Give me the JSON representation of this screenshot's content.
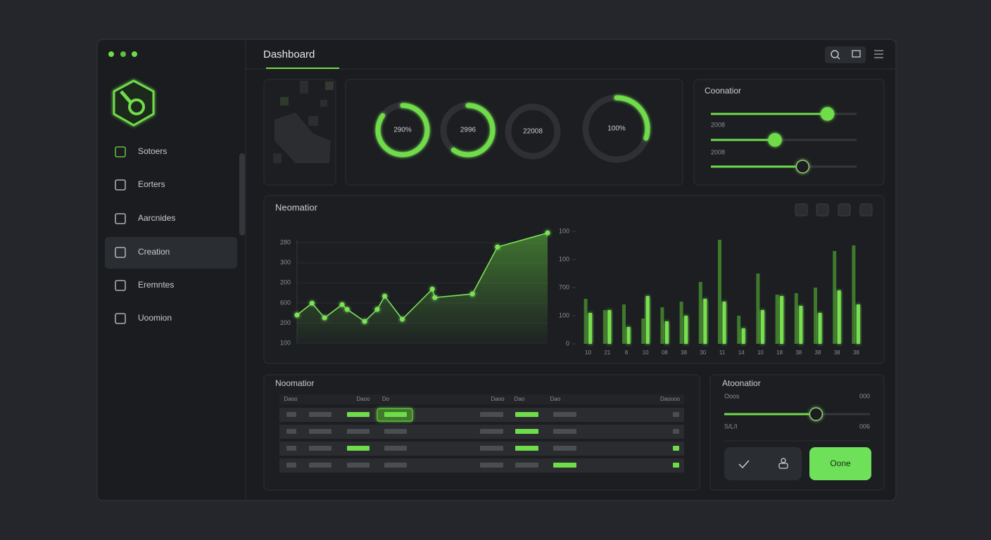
{
  "header": {
    "title": "Dashboard"
  },
  "sidebar": {
    "items": [
      "Sotoers",
      "Eorters",
      "Aarcnides",
      "Creation",
      "Eremntes",
      "Uoomion"
    ],
    "active": 3
  },
  "gauges": [
    {
      "label": "290%",
      "value": 85
    },
    {
      "label": "2996",
      "value": 60
    },
    {
      "label": "22008",
      "value": 0
    },
    {
      "label": "100%",
      "value": 30
    }
  ],
  "controls": {
    "title": "Coonatior",
    "sliders": [
      80,
      44,
      63
    ],
    "labels": [
      "2008",
      "2008"
    ]
  },
  "chart_data": [
    {
      "type": "line",
      "title": "Neomatior",
      "color": "#7be356",
      "x": [
        0,
        6,
        11,
        18,
        20,
        27,
        32,
        35,
        42,
        54,
        55,
        70,
        80,
        100
      ],
      "values": [
        240,
        299,
        226,
        292,
        268,
        208,
        268,
        334,
        219,
        369,
        327,
        345,
        579,
        649
      ],
      "xlim": [
        0,
        100
      ],
      "ylim": [
        100,
        650
      ],
      "yticks": [
        100,
        200,
        {
          "value": 300,
          "label": "600"
        },
        {
          "value": 400,
          "label": "200"
        },
        {
          "value": 500,
          "label": "300"
        },
        {
          "value": 600,
          "label": "280"
        }
      ],
      "grid": true
    },
    {
      "type": "bar",
      "categories": [
        "10",
        "21",
        "8",
        "10",
        "08",
        "38",
        "30",
        "11",
        "14",
        "10",
        "18",
        "38",
        "38",
        "38",
        "38"
      ],
      "series": [
        {
          "color": "#3f7a2c",
          "values": [
            160,
            120,
            140,
            90,
            130,
            150,
            220,
            370,
            100,
            250,
            175,
            180,
            200,
            330,
            350
          ]
        },
        {
          "color": "#78e04f",
          "values": [
            110,
            120,
            60,
            170,
            80,
            100,
            160,
            150,
            55,
            120,
            170,
            135,
            110,
            190,
            140
          ]
        }
      ],
      "ylim": [
        0,
        400
      ],
      "yticks": [
        0,
        100,
        {
          "value": 200,
          "label": "700"
        },
        {
          "value": 300,
          "label": "100"
        },
        {
          "value": 400,
          "label": "100"
        }
      ],
      "grid": false
    }
  ],
  "table": {
    "title": "Noomatior",
    "headers": [
      "Daoo",
      "Daoo",
      "Do",
      "Daoo",
      "Dao",
      "Dao",
      "Daoooo"
    ]
  },
  "panel": {
    "title": "Atoonatior",
    "slider": 63,
    "min_label": "Ooos",
    "min_value": "000",
    "max_label": "S/L/I",
    "max_value": "006",
    "button": "Oone"
  }
}
